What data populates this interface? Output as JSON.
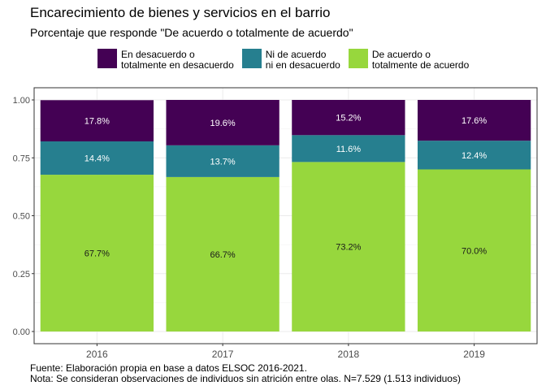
{
  "chart_data": {
    "type": "bar",
    "stacked": true,
    "title": "Encarecimiento de bienes y servicios en el barrio",
    "subtitle": "Porcentaje que responde \"De acuerdo o totalmente de acuerdo\"",
    "categories": [
      "2016",
      "2017",
      "2018",
      "2019"
    ],
    "ylim": [
      0,
      1
    ],
    "yticks": [
      0,
      0.25,
      0.5,
      0.75,
      1
    ],
    "ytick_labels": [
      "0.00",
      "0.25",
      "0.50",
      "0.75",
      "1.00"
    ],
    "grid": true,
    "legend_position": "top",
    "series": [
      {
        "name": "De acuerdo o\ntotalmente de acuerdo",
        "color": "#97d73d",
        "label_color": "#1a1a1a",
        "values": [
          0.677,
          0.667,
          0.732,
          0.7
        ],
        "labels": [
          "67.7%",
          "66.7%",
          "73.2%",
          "70.0%"
        ]
      },
      {
        "name": "Ni de acuerdo\nni en desacuerdo",
        "color": "#267f8f",
        "label_color": "#ffffff",
        "values": [
          0.144,
          0.137,
          0.116,
          0.124
        ],
        "labels": [
          "14.4%",
          "13.7%",
          "11.6%",
          "12.4%"
        ]
      },
      {
        "name": "En desacuerdo o\ntotalmente en desacuerdo",
        "color": "#440154",
        "label_color": "#ffffff",
        "values": [
          0.178,
          0.196,
          0.152,
          0.176
        ],
        "labels": [
          "17.8%",
          "19.6%",
          "15.2%",
          "17.6%"
        ]
      }
    ],
    "legend_order": [
      2,
      1,
      0
    ],
    "caption": [
      "Fuente: Elaboración propia en base a datos ELSOC 2016-2021.",
      "Nota: Se consideran observaciones de individuos sin atrición entre olas. N=7.529 (1.513 individuos)"
    ]
  }
}
